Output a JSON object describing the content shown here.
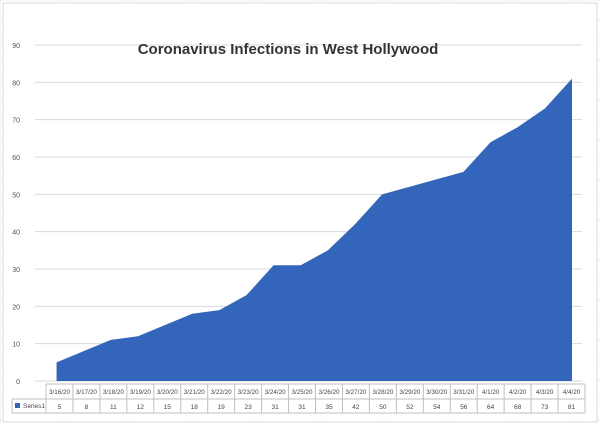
{
  "chart_data": {
    "type": "area",
    "title": "Coronavirus Infections in West Hollywood",
    "xlabel": "",
    "ylabel": "",
    "ylim": [
      0,
      90
    ],
    "yticks": [
      0,
      10,
      20,
      30,
      40,
      50,
      60,
      70,
      80,
      90
    ],
    "grid": true,
    "legend": "data-table-left",
    "categories": [
      "3/16/20",
      "3/17/20",
      "3/18/20",
      "3/19/20",
      "3/20/20",
      "3/21/20",
      "3/22/20",
      "3/23/20",
      "3/24/20",
      "3/25/20",
      "3/26/20",
      "3/27/20",
      "3/28/20",
      "3/29/20",
      "3/30/20",
      "3/31/20",
      "4/1/20",
      "4/2/20",
      "4/3/20",
      "4/4/20"
    ],
    "series": [
      {
        "name": "Series1",
        "color": "#3366bb",
        "values": [
          5,
          8,
          11,
          12,
          15,
          18,
          19,
          23,
          31,
          31,
          35,
          42,
          50,
          52,
          54,
          56,
          64,
          68,
          73,
          81
        ]
      }
    ]
  }
}
